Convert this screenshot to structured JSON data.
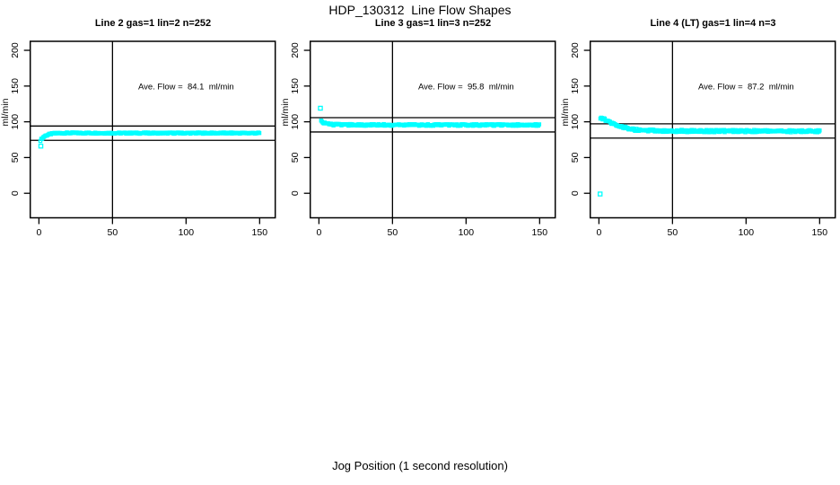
{
  "figure": {
    "title": "HDP_130312  Line Flow Shapes",
    "xlabel": "Jog Position (1 second resolution)",
    "background": "#ffffff",
    "axis_color": "#000000",
    "marker_color": "#00ffff"
  },
  "chart_data": [
    {
      "type": "scatter",
      "title": "Line 2 gas=1 lin=2 n=252",
      "annotation": "Ave. Flow =  84.1  ml/min",
      "ave_flow_ml_min": 84.1,
      "ylabel": "ml/min",
      "xticks": [
        0,
        50,
        100,
        150
      ],
      "yticks": [
        0,
        50,
        100,
        150,
        200
      ],
      "xlim": [
        -5.9,
        160.6
      ],
      "ylim": [
        -34.3,
        212.6
      ],
      "vline_x": 50,
      "hlines": [
        94.1,
        74.1
      ],
      "annotation_xy": [
        100,
        150
      ],
      "outliers": [
        [
          1.3,
          66
        ]
      ],
      "band": {
        "anchors": [
          [
            1,
            74
          ],
          [
            2,
            76.5
          ],
          [
            3,
            78.5
          ],
          [
            4,
            80
          ],
          [
            5,
            81
          ],
          [
            6,
            81.8
          ],
          [
            8,
            83
          ],
          [
            10,
            83.7
          ],
          [
            12,
            84
          ],
          [
            15,
            84.2
          ],
          [
            20,
            84.3
          ],
          [
            30,
            84.3
          ],
          [
            50,
            84.2
          ],
          [
            100,
            84.2
          ],
          [
            150,
            84.2
          ]
        ],
        "x_start": 1,
        "x_end": 150,
        "step": 0.6,
        "thickness": 1.8
      }
    },
    {
      "type": "scatter",
      "title": "Line 3 gas=1 lin=3 n=252",
      "annotation": "Ave. Flow =  95.8  ml/min",
      "ave_flow_ml_min": 95.8,
      "ylabel": "ml/min",
      "xticks": [
        0,
        50,
        100,
        150
      ],
      "yticks": [
        0,
        50,
        100,
        150,
        200
      ],
      "xlim": [
        -5.9,
        160.6
      ],
      "ylim": [
        -34.3,
        212.6
      ],
      "vline_x": 50,
      "hlines": [
        105.8,
        85.8
      ],
      "annotation_xy": [
        100,
        150
      ],
      "outliers": [
        [
          1,
          119
        ]
      ],
      "band": {
        "anchors": [
          [
            1.5,
            101
          ],
          [
            2,
            100
          ],
          [
            3,
            98.8
          ],
          [
            4,
            97.8
          ],
          [
            5,
            97.2
          ],
          [
            6,
            96.8
          ],
          [
            8,
            96.3
          ],
          [
            10,
            96
          ],
          [
            15,
            95.8
          ],
          [
            20,
            95.7
          ],
          [
            30,
            95.6
          ],
          [
            50,
            95.6
          ],
          [
            100,
            95.5
          ],
          [
            150,
            95.5
          ]
        ],
        "x_start": 1.5,
        "x_end": 150,
        "step": 0.6,
        "thickness": 2.4
      }
    },
    {
      "type": "scatter",
      "title": "Line 4 (LT) gas=1 lin=4 n=3",
      "annotation": "Ave. Flow =  87.2  ml/min",
      "ave_flow_ml_min": 87.2,
      "ylabel": "ml/min",
      "xticks": [
        0,
        50,
        100,
        150
      ],
      "yticks": [
        0,
        50,
        100,
        150,
        200
      ],
      "xlim": [
        -5.9,
        160.6
      ],
      "ylim": [
        -34.3,
        212.6
      ],
      "vline_x": 50,
      "hlines": [
        97.2,
        77.2
      ],
      "annotation_xy": [
        100,
        150
      ],
      "outliers": [
        [
          0.8,
          -1
        ]
      ],
      "band": {
        "anchors": [
          [
            1,
            106
          ],
          [
            2,
            105
          ],
          [
            3,
            104
          ],
          [
            4,
            103
          ],
          [
            5,
            102
          ],
          [
            6,
            100.8
          ],
          [
            8,
            98.8
          ],
          [
            10,
            97
          ],
          [
            12,
            95.5
          ],
          [
            15,
            93.3
          ],
          [
            20,
            90.5
          ],
          [
            25,
            88.8
          ],
          [
            30,
            88
          ],
          [
            40,
            87.4
          ],
          [
            50,
            87.2
          ],
          [
            75,
            87
          ],
          [
            100,
            87
          ],
          [
            125,
            86.9
          ],
          [
            150,
            86.9
          ]
        ],
        "x_start": 1,
        "x_end": 150,
        "step": 0.5,
        "thickness": 3.2
      }
    }
  ]
}
